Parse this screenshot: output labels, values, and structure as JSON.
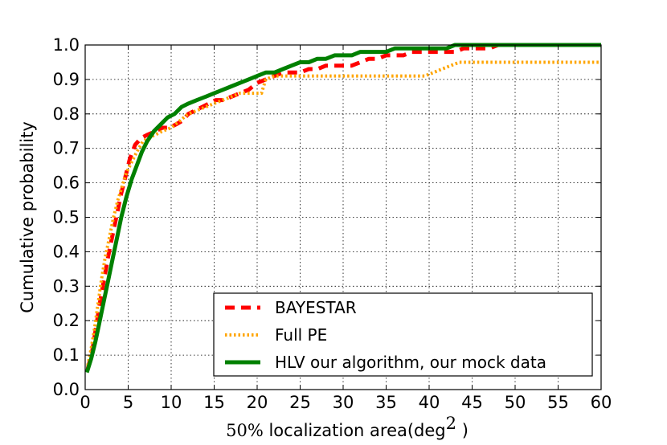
{
  "chart_data": {
    "type": "line",
    "title": "",
    "xlabel": {
      "prefix": "50%",
      "main": " localization area(deg",
      "sup": "2",
      "suffix": " )"
    },
    "ylabel": "Cumulative probability",
    "xlim": [
      0,
      60
    ],
    "ylim": [
      0,
      1.0
    ],
    "xticks": [
      0,
      5,
      10,
      15,
      20,
      25,
      30,
      35,
      40,
      45,
      50,
      55,
      60
    ],
    "yticks": [
      0.0,
      0.1,
      0.2,
      0.3,
      0.4,
      0.5,
      0.6,
      0.7,
      0.8,
      0.9,
      1.0
    ],
    "xtick_labels": [
      "0",
      "5",
      "10",
      "15",
      "20",
      "25",
      "30",
      "35",
      "40",
      "45",
      "50",
      "55",
      "60"
    ],
    "ytick_labels": [
      "0.0",
      "0.1",
      "0.2",
      "0.3",
      "0.4",
      "0.5",
      "0.6",
      "0.7",
      "0.8",
      "0.9",
      "1.0"
    ],
    "grid": true,
    "legend_position": "lower-right",
    "series": [
      {
        "name": "BAYESTAR",
        "color": "#ff0000",
        "style": "dashed",
        "x": [
          0.3,
          0.8,
          1.2,
          1.7,
          2.2,
          2.7,
          3.2,
          3.7,
          4.2,
          4.7,
          5.2,
          5.8,
          6.5,
          7.3,
          8.2,
          9.0,
          9.8,
          10.6,
          11.3,
          12.0,
          12.8,
          13.6,
          14.4,
          15.2,
          16.0,
          17.0,
          18.0,
          19.0,
          20.0,
          21.0,
          22.0,
          23.0,
          24.0,
          25.0,
          26.0,
          27.0,
          28.0,
          29.0,
          30.0,
          31.0,
          32.0,
          33.0,
          34.0,
          35.0,
          36.0,
          37.0,
          38.0,
          39.0,
          40.0,
          41.0,
          42.0,
          43.0,
          44.0,
          45.0,
          46.0,
          47.0,
          48.0,
          50.0,
          55.0,
          60.0
        ],
        "y": [
          0.06,
          0.11,
          0.17,
          0.25,
          0.32,
          0.39,
          0.45,
          0.51,
          0.57,
          0.62,
          0.67,
          0.71,
          0.73,
          0.74,
          0.75,
          0.76,
          0.76,
          0.77,
          0.78,
          0.8,
          0.81,
          0.82,
          0.83,
          0.84,
          0.84,
          0.85,
          0.86,
          0.87,
          0.89,
          0.9,
          0.91,
          0.92,
          0.92,
          0.92,
          0.93,
          0.93,
          0.94,
          0.94,
          0.94,
          0.94,
          0.95,
          0.96,
          0.96,
          0.97,
          0.97,
          0.97,
          0.98,
          0.98,
          0.98,
          0.98,
          0.98,
          0.98,
          0.99,
          0.99,
          0.99,
          0.99,
          1.0,
          1.0,
          1.0,
          1.0
        ]
      },
      {
        "name": "Full PE",
        "color": "#ffa500",
        "style": "dotted",
        "x": [
          0.3,
          0.7,
          1.1,
          1.5,
          1.9,
          2.3,
          2.8,
          3.3,
          3.8,
          4.3,
          4.8,
          5.4,
          6.0,
          6.7,
          7.4,
          8.2,
          9.0,
          10.0,
          11.0,
          12.0,
          13.0,
          14.0,
          15.0,
          16.0,
          17.0,
          18.0,
          19.0,
          20.0,
          20.5,
          21.0,
          22.0,
          25.0,
          30.0,
          35.0,
          39.5,
          40.5,
          41.5,
          42.5,
          43.5,
          45.0,
          50.0,
          55.0,
          60.0
        ],
        "y": [
          0.07,
          0.12,
          0.18,
          0.25,
          0.32,
          0.38,
          0.44,
          0.5,
          0.55,
          0.59,
          0.63,
          0.66,
          0.69,
          0.72,
          0.73,
          0.74,
          0.75,
          0.76,
          0.78,
          0.8,
          0.81,
          0.82,
          0.83,
          0.84,
          0.85,
          0.86,
          0.86,
          0.86,
          0.86,
          0.9,
          0.91,
          0.91,
          0.91,
          0.91,
          0.91,
          0.92,
          0.93,
          0.94,
          0.95,
          0.95,
          0.95,
          0.95,
          0.95
        ]
      },
      {
        "name": "HLV our algorithm, our mock data",
        "color": "#008000",
        "style": "solid",
        "x": [
          0.2,
          0.7,
          1.2,
          1.7,
          2.2,
          2.7,
          3.2,
          3.7,
          4.2,
          4.8,
          5.4,
          6.0,
          6.6,
          7.2,
          8.0,
          8.8,
          9.6,
          10.4,
          11.2,
          12.0,
          13.0,
          14.0,
          15.0,
          16.0,
          17.0,
          18.0,
          19.0,
          20.0,
          21.0,
          22.0,
          23.0,
          24.0,
          25.0,
          26.0,
          27.0,
          28.0,
          29.0,
          30.0,
          31.0,
          32.0,
          33.0,
          34.0,
          35.0,
          36.0,
          37.0,
          38.0,
          39.0,
          40.0,
          41.0,
          42.0,
          43.0,
          44.0,
          45.0,
          47.0,
          48.0,
          50.0,
          55.0,
          60.0
        ],
        "y": [
          0.05,
          0.09,
          0.14,
          0.2,
          0.26,
          0.32,
          0.38,
          0.44,
          0.5,
          0.56,
          0.61,
          0.65,
          0.69,
          0.72,
          0.75,
          0.77,
          0.79,
          0.8,
          0.82,
          0.83,
          0.84,
          0.85,
          0.86,
          0.87,
          0.88,
          0.89,
          0.9,
          0.91,
          0.92,
          0.92,
          0.93,
          0.94,
          0.95,
          0.95,
          0.96,
          0.96,
          0.97,
          0.97,
          0.97,
          0.98,
          0.98,
          0.98,
          0.98,
          0.99,
          0.99,
          0.99,
          0.99,
          0.99,
          0.99,
          0.99,
          1.0,
          1.0,
          1.0,
          1.0,
          1.0,
          1.0,
          1.0,
          1.0
        ]
      }
    ]
  }
}
